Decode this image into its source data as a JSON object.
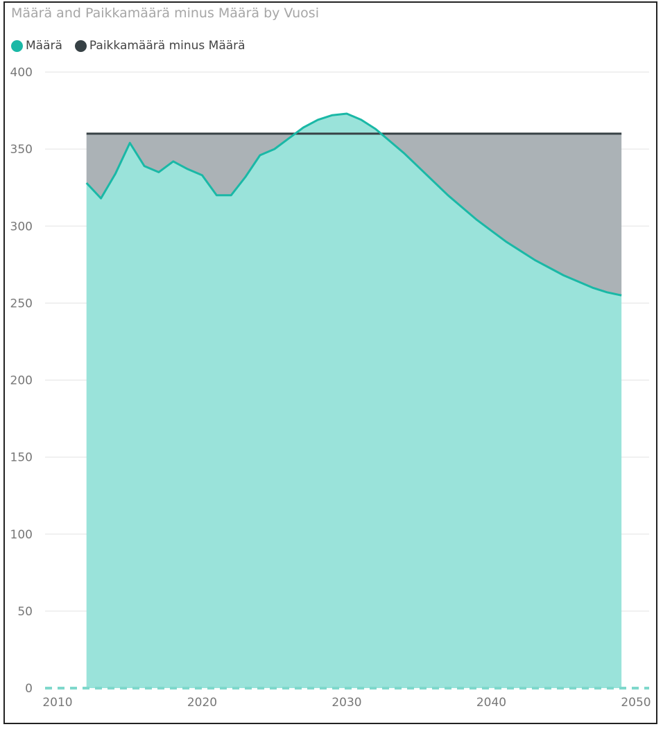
{
  "chart_data": {
    "type": "area",
    "title": "Määrä and Paikkamäärä minus Määrä by Vuosi",
    "xlabel": "",
    "ylabel": "",
    "xlim": [
      2009,
      2051
    ],
    "ylim": [
      0,
      400
    ],
    "x_ticks": [
      "2010",
      "2020",
      "2030",
      "2040",
      "2050"
    ],
    "y_ticks": [
      "0",
      "50",
      "100",
      "150",
      "200",
      "250",
      "300",
      "350",
      "400"
    ],
    "grid": true,
    "legend_position": "top-left",
    "x": [
      2012,
      2013,
      2014,
      2015,
      2016,
      2017,
      2018,
      2019,
      2020,
      2021,
      2022,
      2023,
      2024,
      2025,
      2026,
      2027,
      2028,
      2029,
      2030,
      2031,
      2032,
      2033,
      2034,
      2035,
      2036,
      2037,
      2038,
      2039,
      2040,
      2041,
      2042,
      2043,
      2044,
      2045,
      2046,
      2047,
      2048,
      2049
    ],
    "series": [
      {
        "name": "Määrä",
        "color": "#1ab8a6",
        "fill": "#9ae3da",
        "values": [
          328,
          318,
          334,
          354,
          339,
          335,
          342,
          337,
          333,
          320,
          320,
          332,
          346,
          350,
          357,
          364,
          369,
          372,
          373,
          369,
          363,
          355,
          347,
          338,
          329,
          320,
          312,
          304,
          297,
          290,
          284,
          278,
          273,
          268,
          264,
          260,
          257,
          255
        ]
      },
      {
        "name": "Paikkamäärä minus Määrä",
        "color": "#374145",
        "fill": "#abb2b6",
        "total": 360
      }
    ]
  }
}
